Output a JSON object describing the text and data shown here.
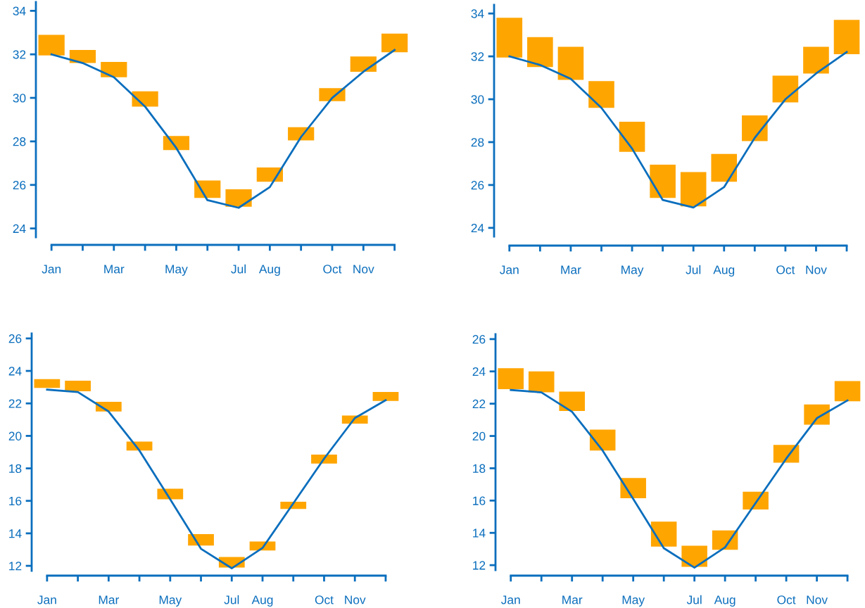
{
  "chart_data": [
    {
      "type": "bar",
      "categories": [
        "Jan",
        null,
        "Mar",
        null,
        "May",
        null,
        "Jul",
        "Aug",
        null,
        "Oct",
        "Nov",
        null
      ],
      "ylim": [
        23.6,
        34.4
      ],
      "yticks": [
        24,
        26,
        28,
        30,
        32,
        34
      ],
      "series": [
        {
          "type": "line",
          "color": "#0a6ebd",
          "values": [
            32.0,
            31.6,
            30.95,
            29.6,
            27.7,
            25.3,
            24.95,
            25.9,
            28.2,
            30.0,
            31.2,
            32.2
          ]
        },
        {
          "type": "bar",
          "color": "#ffa500",
          "base": [
            31.95,
            31.6,
            30.95,
            29.6,
            27.6,
            25.4,
            25.0,
            26.15,
            28.05,
            29.85,
            31.2,
            32.1
          ],
          "values": [
            0.95,
            0.6,
            0.7,
            0.7,
            0.65,
            0.8,
            0.8,
            0.65,
            0.6,
            0.6,
            0.7,
            0.85
          ]
        }
      ]
    },
    {
      "type": "bar",
      "categories": [
        "Jan",
        null,
        "Mar",
        null,
        "May",
        null,
        "Jul",
        "Aug",
        null,
        "Oct",
        "Nov",
        null
      ],
      "ylim": [
        23.6,
        34.4
      ],
      "yticks": [
        24,
        26,
        28,
        30,
        32,
        34
      ],
      "series": [
        {
          "type": "line",
          "color": "#0a6ebd",
          "values": [
            32.0,
            31.6,
            30.95,
            29.6,
            27.7,
            25.3,
            24.95,
            25.9,
            28.2,
            30.0,
            31.2,
            32.2
          ]
        },
        {
          "type": "bar",
          "color": "#ffa500",
          "base": [
            31.95,
            31.5,
            30.9,
            29.6,
            27.55,
            25.4,
            25.0,
            26.15,
            28.05,
            29.85,
            31.2,
            32.1
          ],
          "values": [
            1.85,
            1.4,
            1.55,
            1.25,
            1.4,
            1.55,
            1.6,
            1.3,
            1.2,
            1.25,
            1.25,
            1.6
          ]
        }
      ]
    },
    {
      "type": "bar",
      "categories": [
        "Jan",
        null,
        "Mar",
        null,
        "May",
        null,
        "Jul",
        "Aug",
        null,
        "Oct",
        "Nov",
        null
      ],
      "ylim": [
        11.7,
        26.3
      ],
      "yticks": [
        12,
        14,
        16,
        18,
        20,
        22,
        24,
        26
      ],
      "series": [
        {
          "type": "line",
          "color": "#0a6ebd",
          "values": [
            22.85,
            22.7,
            21.5,
            19.1,
            16.1,
            13.05,
            11.85,
            13.1,
            15.85,
            18.6,
            21.1,
            22.2
          ]
        },
        {
          "type": "bar",
          "color": "#ffa500",
          "base": [
            22.95,
            22.75,
            21.5,
            19.1,
            16.1,
            13.25,
            11.9,
            12.95,
            15.5,
            18.3,
            20.75,
            22.15
          ],
          "values": [
            0.55,
            0.65,
            0.6,
            0.55,
            0.65,
            0.7,
            0.65,
            0.55,
            0.45,
            0.55,
            0.5,
            0.55
          ]
        }
      ]
    },
    {
      "type": "bar",
      "categories": [
        "Jan",
        null,
        "Mar",
        null,
        "May",
        null,
        "Jul",
        "Aug",
        null,
        "Oct",
        "Nov",
        null
      ],
      "ylim": [
        11.7,
        26.3
      ],
      "yticks": [
        12,
        14,
        16,
        18,
        20,
        22,
        24,
        26
      ],
      "series": [
        {
          "type": "line",
          "color": "#0a6ebd",
          "values": [
            22.85,
            22.7,
            21.5,
            19.1,
            16.1,
            13.05,
            11.85,
            13.1,
            15.85,
            18.6,
            21.1,
            22.2
          ]
        },
        {
          "type": "bar",
          "color": "#ffa500",
          "base": [
            22.9,
            22.7,
            21.55,
            19.1,
            16.15,
            13.15,
            11.9,
            12.95,
            15.45,
            18.35,
            20.7,
            22.15
          ],
          "values": [
            1.3,
            1.3,
            1.2,
            1.3,
            1.25,
            1.55,
            1.3,
            1.2,
            1.1,
            1.1,
            1.25,
            1.25
          ]
        }
      ]
    }
  ]
}
